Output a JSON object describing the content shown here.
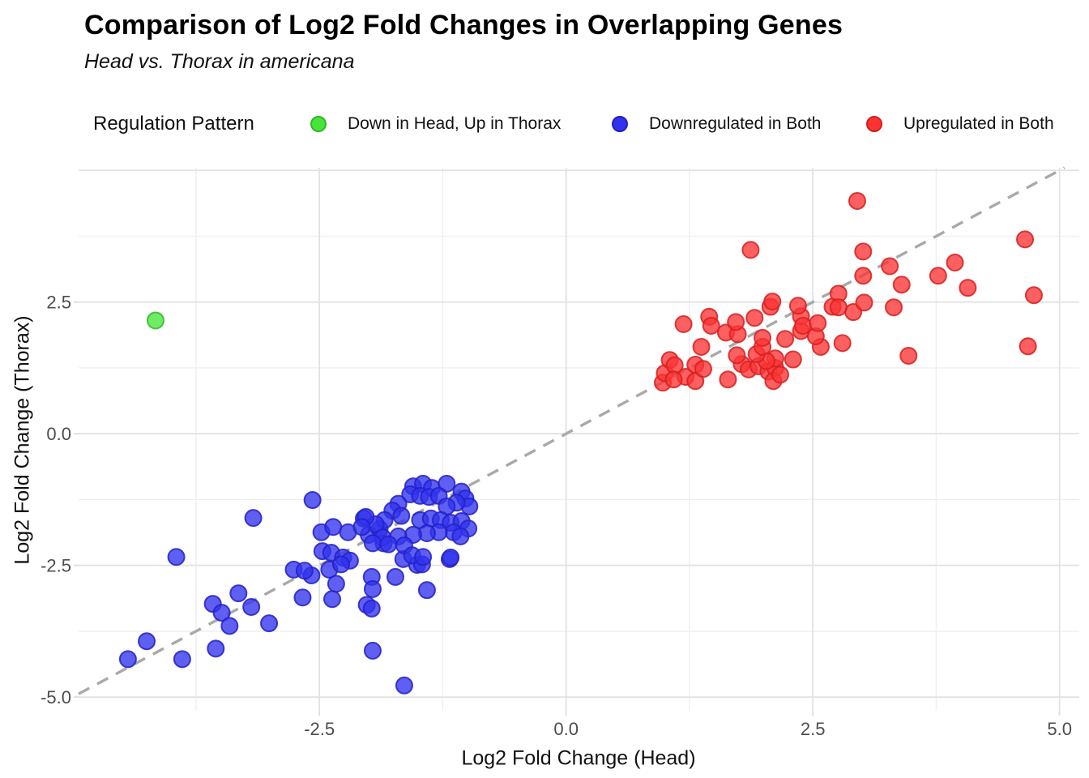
{
  "title": "Comparison of Log2 Fold Changes in Overlapping Genes",
  "subtitle": "Head vs. Thorax in americana",
  "legend": {
    "title": "Regulation Pattern",
    "items": [
      {
        "label": "Down in Head, Up in Thorax",
        "color": "#47e539",
        "stroke": "#34b52a"
      },
      {
        "label": "Downregulated in Both",
        "color": "#3232ee",
        "stroke": "#2121c6"
      },
      {
        "label": "Upregulated in Both",
        "color": "#fb3333",
        "stroke": "#d61f1f"
      }
    ]
  },
  "chart_data": {
    "type": "scatter",
    "title": "Comparison of Log2 Fold Changes in Overlapping Genes",
    "subtitle": "Head vs. Thorax in americana",
    "xlabel": "Log2 Fold Change (Head)",
    "ylabel": "Log2 Fold Change (Thorax)",
    "xlim": [
      -4.94,
      5.2
    ],
    "ylim": [
      -5.26,
      5.05
    ],
    "x_ticks": [
      -2.5,
      0.0,
      2.5,
      5.0
    ],
    "x_tick_labels": [
      "-2.5",
      "0.0",
      "2.5",
      "5.0"
    ],
    "y_ticks": [
      -5.0,
      -2.5,
      0.0,
      2.5
    ],
    "y_tick_labels": [
      "-5.0",
      "-2.5",
      "0.0",
      "2.5"
    ],
    "x_grid_major": [
      -2.5,
      0.0,
      2.5,
      5.0
    ],
    "x_grid_minor": [
      -3.75,
      -1.25,
      1.25,
      3.75
    ],
    "y_grid_major": [
      -5.0,
      -2.5,
      0.0,
      2.5,
      5.0
    ],
    "y_grid_minor": [
      -3.75,
      -1.25,
      1.25,
      3.75
    ],
    "grid": true,
    "legend_position": "top",
    "reference_line": {
      "type": "identity y=x",
      "style": "dashed",
      "color": "#a9a9a9"
    },
    "series": [
      {
        "name": "Down in Head, Up in Thorax",
        "color": "#47e539",
        "stroke": "#34b52a",
        "points": [
          [
            -4.16,
            2.15
          ]
        ]
      },
      {
        "name": "Downregulated in Both",
        "color": "#3232ee",
        "stroke": "#2121c6",
        "points": [
          [
            -4.44,
            -4.28
          ],
          [
            -4.25,
            -3.94
          ],
          [
            -3.89,
            -4.28
          ],
          [
            -3.95,
            -2.34
          ],
          [
            -3.58,
            -3.23
          ],
          [
            -3.49,
            -3.4
          ],
          [
            -3.41,
            -3.65
          ],
          [
            -3.32,
            -3.03
          ],
          [
            -3.55,
            -4.08
          ],
          [
            -3.19,
            -3.29
          ],
          [
            -3.01,
            -3.6
          ],
          [
            -3.17,
            -1.6
          ],
          [
            -2.76,
            -2.58
          ],
          [
            -2.58,
            -2.69
          ],
          [
            -2.4,
            -2.58
          ],
          [
            -2.33,
            -2.85
          ],
          [
            -2.67,
            -3.11
          ],
          [
            -2.37,
            -3.14
          ],
          [
            -2.57,
            -1.26
          ],
          [
            -2.48,
            -1.87
          ],
          [
            -2.36,
            -1.77
          ],
          [
            -2.21,
            -1.87
          ],
          [
            -2.05,
            -1.61
          ],
          [
            -2.0,
            -1.92
          ],
          [
            -1.89,
            -1.81
          ],
          [
            -1.85,
            -2.08
          ],
          [
            -2.47,
            -2.23
          ],
          [
            -2.38,
            -2.26
          ],
          [
            -2.26,
            -2.35
          ],
          [
            -2.19,
            -2.41
          ],
          [
            -2.65,
            -2.6
          ],
          [
            -2.28,
            -2.48
          ],
          [
            -1.97,
            -2.72
          ],
          [
            -1.96,
            -2.95
          ],
          [
            -2.02,
            -3.25
          ],
          [
            -1.97,
            -3.32
          ],
          [
            -1.96,
            -4.12
          ],
          [
            -1.64,
            -4.78
          ],
          [
            -1.73,
            -2.72
          ],
          [
            -1.65,
            -2.38
          ],
          [
            -1.51,
            -2.49
          ],
          [
            -1.46,
            -2.48
          ],
          [
            -1.41,
            -2.97
          ],
          [
            -1.18,
            -2.38
          ],
          [
            -1.55,
            -1.0
          ],
          [
            -1.45,
            -0.95
          ],
          [
            -1.36,
            -1.03
          ],
          [
            -1.21,
            -0.95
          ],
          [
            -1.58,
            -1.15
          ],
          [
            -1.48,
            -1.18
          ],
          [
            -1.39,
            -1.2
          ],
          [
            -1.29,
            -1.18
          ],
          [
            -1.06,
            -1.1
          ],
          [
            -1.02,
            -1.23
          ],
          [
            -0.98,
            -1.38
          ],
          [
            -1.11,
            -1.31
          ],
          [
            -1.21,
            -1.38
          ],
          [
            -1.7,
            -1.33
          ],
          [
            -1.76,
            -1.46
          ],
          [
            -1.67,
            -1.56
          ],
          [
            -1.84,
            -1.64
          ],
          [
            -1.93,
            -1.72
          ],
          [
            -2.03,
            -1.58
          ],
          [
            -2.07,
            -1.77
          ],
          [
            -1.48,
            -1.64
          ],
          [
            -1.37,
            -1.61
          ],
          [
            -1.27,
            -1.64
          ],
          [
            -1.17,
            -1.69
          ],
          [
            -1.06,
            -1.66
          ],
          [
            -0.99,
            -1.8
          ],
          [
            -1.14,
            -1.87
          ],
          [
            -1.29,
            -1.87
          ],
          [
            -1.41,
            -1.89
          ],
          [
            -1.55,
            -1.92
          ],
          [
            -1.7,
            -1.95
          ],
          [
            -1.86,
            -1.97
          ],
          [
            -1.96,
            -2.08
          ],
          [
            -1.8,
            -2.1
          ],
          [
            -1.64,
            -2.12
          ],
          [
            -1.07,
            -1.95
          ],
          [
            -1.56,
            -2.31
          ],
          [
            -1.45,
            -2.34
          ],
          [
            -1.17,
            -2.35
          ]
        ]
      },
      {
        "name": "Upregulated in Both",
        "color": "#fb3333",
        "stroke": "#d61f1f",
        "points": [
          [
            0.98,
            0.97
          ],
          [
            1.0,
            1.15
          ],
          [
            1.05,
            1.4
          ],
          [
            1.1,
            1.3
          ],
          [
            1.21,
            1.08
          ],
          [
            1.09,
            1.03
          ],
          [
            1.31,
            1.0
          ],
          [
            1.31,
            1.31
          ],
          [
            1.39,
            1.23
          ],
          [
            1.64,
            1.03
          ],
          [
            1.78,
            1.32
          ],
          [
            1.85,
            1.22
          ],
          [
            1.95,
            1.28
          ],
          [
            2.05,
            1.18
          ],
          [
            2.12,
            1.25
          ],
          [
            2.1,
            1.0
          ],
          [
            2.17,
            1.12
          ],
          [
            2.3,
            1.41
          ],
          [
            2.12,
            1.43
          ],
          [
            2.03,
            1.38
          ],
          [
            1.93,
            1.51
          ],
          [
            1.73,
            1.49
          ],
          [
            1.37,
            1.65
          ],
          [
            1.99,
            1.65
          ],
          [
            2.58,
            1.65
          ],
          [
            2.8,
            1.72
          ],
          [
            3.47,
            1.48
          ],
          [
            4.68,
            1.66
          ],
          [
            1.62,
            1.92
          ],
          [
            1.74,
            1.89
          ],
          [
            1.99,
            1.82
          ],
          [
            2.22,
            1.8
          ],
          [
            2.38,
            1.95
          ],
          [
            2.53,
            1.85
          ],
          [
            1.19,
            2.08
          ],
          [
            1.45,
            2.22
          ],
          [
            1.47,
            2.05
          ],
          [
            1.72,
            2.12
          ],
          [
            1.91,
            2.2
          ],
          [
            2.07,
            2.41
          ],
          [
            2.38,
            2.23
          ],
          [
            2.4,
            2.05
          ],
          [
            2.55,
            2.1
          ],
          [
            2.7,
            2.41
          ],
          [
            2.91,
            2.31
          ],
          [
            2.09,
            2.51
          ],
          [
            2.35,
            2.43
          ],
          [
            3.02,
            2.49
          ],
          [
            2.76,
            2.66
          ],
          [
            2.76,
            2.4
          ],
          [
            3.32,
            2.4
          ],
          [
            3.01,
            3.0
          ],
          [
            3.28,
            3.18
          ],
          [
            3.4,
            2.83
          ],
          [
            3.77,
            3.0
          ],
          [
            3.94,
            3.25
          ],
          [
            4.07,
            2.77
          ],
          [
            4.74,
            2.63
          ],
          [
            1.87,
            3.49
          ],
          [
            3.01,
            3.46
          ],
          [
            4.65,
            3.69
          ],
          [
            2.95,
            4.42
          ]
        ]
      }
    ]
  }
}
